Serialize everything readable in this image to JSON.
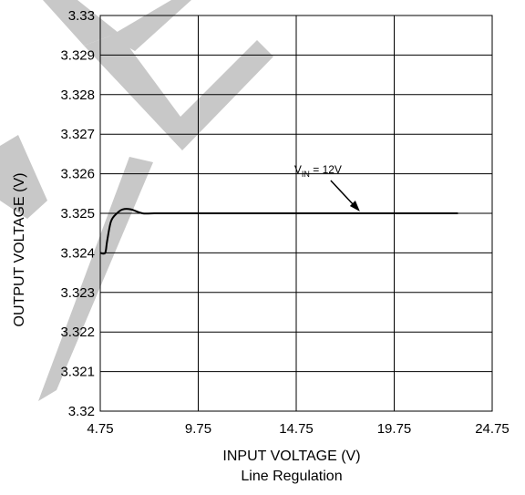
{
  "chart_data": {
    "type": "line",
    "xlabel": "INPUT VOLTAGE (V)",
    "ylabel": "OUTPUT VOLTAGE (V)",
    "caption": "Line Regulation",
    "xlim": [
      4.75,
      24.75
    ],
    "ylim": [
      3.32,
      3.33
    ],
    "x_ticks": [
      "4.75",
      "9.75",
      "14.75",
      "19.75",
      "24.75"
    ],
    "y_ticks": [
      "3.32",
      "3.321",
      "3.322",
      "3.323",
      "3.324",
      "3.325",
      "3.326",
      "3.327",
      "3.328",
      "3.329",
      "3.33"
    ],
    "grid": true,
    "series": [
      {
        "x": [
          4.75,
          5.0,
          5.1,
          5.3,
          5.6,
          5.9,
          6.3,
          6.9,
          7.5,
          9.0,
          12.0,
          15.0,
          18.0,
          21.0,
          23.0
        ],
        "y": [
          3.324,
          3.324,
          3.3243,
          3.3248,
          3.325,
          3.3251,
          3.3251,
          3.325,
          3.325,
          3.325,
          3.325,
          3.325,
          3.325,
          3.325,
          3.325
        ]
      }
    ],
    "annotation": {
      "text_main": "V",
      "text_sub": "IN",
      "text_rest": " = 12V",
      "target_x": 18.0,
      "target_y": 3.325
    },
    "colors": {
      "line": "#000000",
      "grid": "#000000",
      "watermark": "#c8c8c8"
    }
  }
}
